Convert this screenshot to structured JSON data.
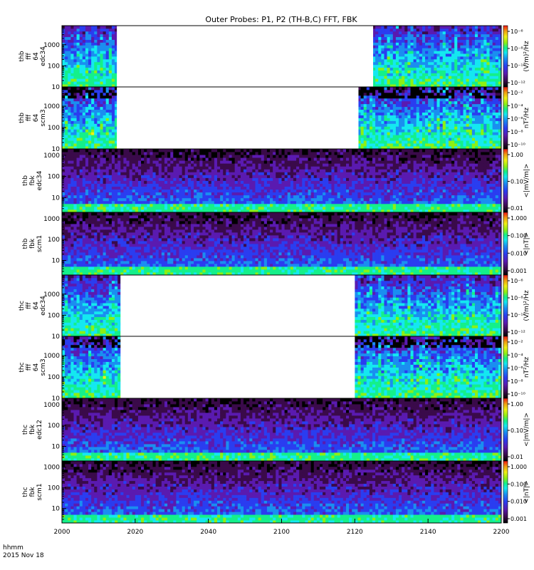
{
  "title": "Outer Probes: P1, P2 (TH-B,C) FFT, FBK",
  "time_axis": {
    "ticks": [
      "2000",
      "2020",
      "2040",
      "2100",
      "2120",
      "2140",
      "2200"
    ],
    "label_line1": "hhmm",
    "label_line2": "2015 Nov 18"
  },
  "colors": {
    "background": "#ffffff",
    "spectrogram_scale": [
      "#000000",
      "#3a0a4a",
      "#5a1ab0",
      "#2a3df0",
      "#1a8ef0",
      "#14e8f0",
      "#14f08a",
      "#8cf014",
      "#f0f014",
      "#f0a014",
      "#f01414"
    ]
  },
  "chart_data": [
    {
      "type": "heatmap",
      "panel_label": [
        "thb",
        "fff",
        "64",
        "edc34"
      ],
      "ytick_labels": [
        "10",
        "100",
        "1000"
      ],
      "yscale": "log",
      "ylim": [
        10,
        8000
      ],
      "colorbar_label": "(V/m)²/Hz",
      "colorbar_ticks": [
        "10⁻⁶",
        "10⁻⁸",
        "10⁻¹⁰",
        "10⁻¹²"
      ],
      "data_gaps_hhmm": [
        [
          "2015",
          "2125"
        ]
      ]
    },
    {
      "type": "heatmap",
      "panel_label": [
        "thb",
        "fff",
        "64",
        "scm3"
      ],
      "ytick_labels": [
        "10",
        "100",
        "1000"
      ],
      "yscale": "log",
      "ylim": [
        10,
        8000
      ],
      "colorbar_label": "nT²/Hz",
      "colorbar_ticks": [
        "10⁻²",
        "10⁻⁴",
        "10⁻⁶",
        "10⁻⁸",
        "10⁻¹⁰"
      ],
      "data_gaps_hhmm": [
        [
          "2015",
          "2121"
        ]
      ]
    },
    {
      "type": "heatmap",
      "panel_label": [
        "thb",
        "fbk",
        "edc34"
      ],
      "ytick_labels": [
        "10",
        "100",
        "1000"
      ],
      "yscale": "log",
      "ylim": [
        2,
        2000
      ],
      "colorbar_label": "<|mV/m|>",
      "colorbar_ticks": [
        "1.00",
        "0.10",
        "0.01"
      ],
      "data_gaps_hhmm": []
    },
    {
      "type": "heatmap",
      "panel_label": [
        "thb",
        "fbk",
        "scm1"
      ],
      "ytick_labels": [
        "10",
        "100",
        "1000"
      ],
      "yscale": "log",
      "ylim": [
        2,
        2000
      ],
      "colorbar_label": "<|nT|>",
      "colorbar_ticks": [
        "1.000",
        "0.100",
        "0.010",
        "0.001"
      ],
      "data_gaps_hhmm": []
    },
    {
      "type": "heatmap",
      "panel_label": [
        "thc",
        "fff",
        "64",
        "edc34"
      ],
      "ytick_labels": [
        "10",
        "100",
        "1000"
      ],
      "yscale": "log",
      "ylim": [
        10,
        8000
      ],
      "colorbar_label": "(V/m)²/Hz",
      "colorbar_ticks": [
        "10⁻⁶",
        "10⁻⁸",
        "10⁻¹⁰",
        "10⁻¹²"
      ],
      "data_gaps_hhmm": [
        [
          "2016",
          "2120"
        ]
      ]
    },
    {
      "type": "heatmap",
      "panel_label": [
        "thc",
        "fff",
        "64",
        "scm3"
      ],
      "ytick_labels": [
        "10",
        "100",
        "1000"
      ],
      "yscale": "log",
      "ylim": [
        10,
        8000
      ],
      "colorbar_label": "nT²/Hz",
      "colorbar_ticks": [
        "10⁻²",
        "10⁻⁴",
        "10⁻⁶",
        "10⁻⁸",
        "10⁻¹⁰"
      ],
      "data_gaps_hhmm": [
        [
          "2016",
          "2120"
        ]
      ]
    },
    {
      "type": "heatmap",
      "panel_label": [
        "thc",
        "fbk",
        "edc12"
      ],
      "ytick_labels": [
        "10",
        "100",
        "1000"
      ],
      "yscale": "log",
      "ylim": [
        2,
        2000
      ],
      "colorbar_label": "<|mV/m|>",
      "colorbar_ticks": [
        "1.00",
        "0.10",
        "0.01"
      ],
      "data_gaps_hhmm": []
    },
    {
      "type": "heatmap",
      "panel_label": [
        "thc",
        "fbk",
        "scm1"
      ],
      "ytick_labels": [
        "10",
        "100",
        "1000"
      ],
      "yscale": "log",
      "ylim": [
        2,
        2000
      ],
      "colorbar_label": "<|nT|>",
      "colorbar_ticks": [
        "1.000",
        "0.100",
        "0.010",
        "0.001"
      ],
      "data_gaps_hhmm": []
    }
  ]
}
